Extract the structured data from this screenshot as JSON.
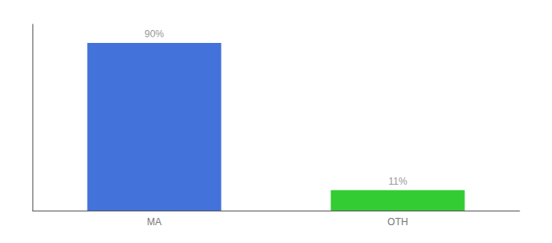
{
  "chart_data": {
    "type": "bar",
    "categories": [
      "MA",
      "OTH"
    ],
    "values": [
      90,
      11
    ],
    "value_labels": [
      "90%",
      "11%"
    ],
    "colors": [
      "#4472db",
      "#33cc33"
    ],
    "ylim": [
      0,
      100
    ],
    "grid": false,
    "data_labels": true,
    "tick_labels": "x"
  }
}
